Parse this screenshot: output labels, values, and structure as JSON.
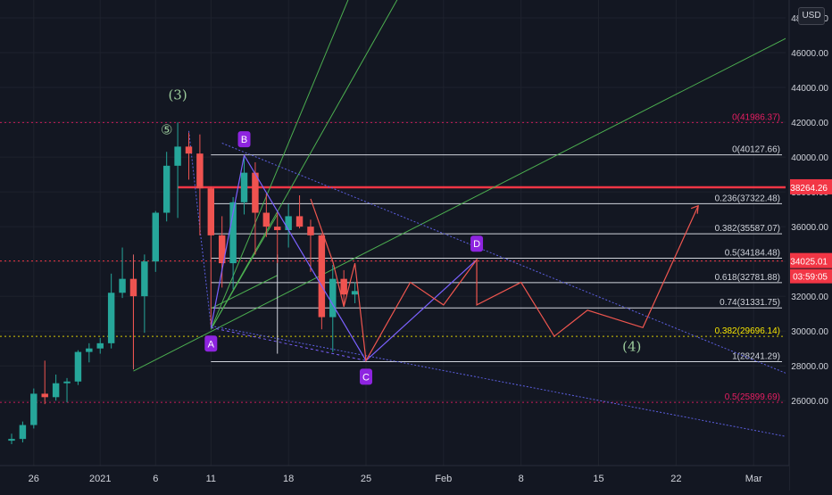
{
  "currency_button": "USD",
  "chart_data": {
    "type": "candlestick",
    "symbol_currency": "USD",
    "y_axis": {
      "range": [
        23500,
        48000
      ],
      "ticks": [
        {
          "value": 26000,
          "label": "26000.00"
        },
        {
          "value": 28000,
          "label": "28000.00"
        },
        {
          "value": 30000,
          "label": "30000.00"
        },
        {
          "value": 32000,
          "label": "32000.00"
        },
        {
          "value": 34000,
          "label": "34000.00"
        },
        {
          "value": 36000,
          "label": "36000.00"
        },
        {
          "value": 38000,
          "label": "38000.00"
        },
        {
          "value": 40000,
          "label": "40000.00"
        },
        {
          "value": 42000,
          "label": "42000.00"
        },
        {
          "value": 44000,
          "label": "44000.00"
        },
        {
          "value": 46000,
          "label": "46000.00"
        },
        {
          "value": 48000,
          "label": "48000.00"
        }
      ]
    },
    "x_axis": {
      "range": [
        "2020-12-24",
        "2021-03-03"
      ],
      "ticks": [
        {
          "date": "2020-12-26",
          "label": "26"
        },
        {
          "date": "2021-01-01",
          "label": "2021"
        },
        {
          "date": "2021-01-06",
          "label": "6"
        },
        {
          "date": "2021-01-11",
          "label": "11"
        },
        {
          "date": "2021-01-18",
          "label": "18"
        },
        {
          "date": "2021-01-25",
          "label": "25"
        },
        {
          "date": "2021-02-01",
          "label": "Feb"
        },
        {
          "date": "2021-02-08",
          "label": "8"
        },
        {
          "date": "2021-02-15",
          "label": "15"
        },
        {
          "date": "2021-02-22",
          "label": "22"
        },
        {
          "date": "2021-03-01",
          "label": "Mar"
        }
      ]
    },
    "candles": [
      {
        "date": "2020-12-24",
        "o": 23700,
        "h": 24100,
        "l": 23500,
        "c": 23800
      },
      {
        "date": "2020-12-25",
        "o": 23800,
        "h": 24800,
        "l": 23600,
        "c": 24600
      },
      {
        "date": "2020-12-26",
        "o": 24600,
        "h": 26700,
        "l": 24400,
        "c": 26400
      },
      {
        "date": "2020-12-27",
        "o": 26400,
        "h": 28300,
        "l": 25800,
        "c": 26200
      },
      {
        "date": "2020-12-28",
        "o": 26200,
        "h": 27500,
        "l": 26000,
        "c": 27000
      },
      {
        "date": "2020-12-29",
        "o": 27000,
        "h": 27300,
        "l": 25900,
        "c": 27100
      },
      {
        "date": "2020-12-30",
        "o": 27100,
        "h": 28900,
        "l": 26900,
        "c": 28800
      },
      {
        "date": "2020-12-31",
        "o": 28800,
        "h": 29300,
        "l": 28200,
        "c": 29000
      },
      {
        "date": "2021-01-01",
        "o": 29000,
        "h": 29600,
        "l": 28700,
        "c": 29300
      },
      {
        "date": "2021-01-02",
        "o": 29300,
        "h": 33300,
        "l": 29000,
        "c": 32200
      },
      {
        "date": "2021-01-03",
        "o": 32200,
        "h": 34800,
        "l": 31900,
        "c": 33000
      },
      {
        "date": "2021-01-04",
        "o": 33000,
        "h": 33600,
        "l": 28100,
        "c": 32000
      },
      {
        "date": "2021-01-05",
        "o": 32000,
        "h": 34400,
        "l": 29900,
        "c": 34000
      },
      {
        "date": "2021-01-06",
        "o": 34000,
        "h": 36900,
        "l": 33400,
        "c": 36800
      },
      {
        "date": "2021-01-07",
        "o": 36800,
        "h": 40300,
        "l": 36300,
        "c": 39500
      },
      {
        "date": "2021-01-08",
        "o": 39500,
        "h": 41986,
        "l": 36500,
        "c": 40600
      },
      {
        "date": "2021-01-09",
        "o": 40600,
        "h": 41400,
        "l": 38700,
        "c": 40200
      },
      {
        "date": "2021-01-10",
        "o": 40200,
        "h": 41300,
        "l": 35500,
        "c": 38200
      },
      {
        "date": "2021-01-11",
        "o": 38200,
        "h": 38300,
        "l": 30300,
        "c": 35500
      },
      {
        "date": "2021-01-12",
        "o": 35500,
        "h": 36600,
        "l": 32500,
        "c": 33900
      },
      {
        "date": "2021-01-13",
        "o": 33900,
        "h": 37700,
        "l": 32400,
        "c": 37400
      },
      {
        "date": "2021-01-14",
        "o": 37400,
        "h": 40100,
        "l": 36700,
        "c": 39100
      },
      {
        "date": "2021-01-15",
        "o": 39100,
        "h": 39700,
        "l": 34400,
        "c": 36800
      },
      {
        "date": "2021-01-16",
        "o": 36800,
        "h": 37900,
        "l": 35400,
        "c": 36000
      },
      {
        "date": "2021-01-17",
        "o": 36000,
        "h": 36800,
        "l": 33900,
        "c": 35800
      },
      {
        "date": "2021-01-18",
        "o": 35800,
        "h": 37300,
        "l": 34800,
        "c": 36600
      },
      {
        "date": "2021-01-19",
        "o": 36600,
        "h": 37800,
        "l": 35900,
        "c": 36000
      },
      {
        "date": "2021-01-20",
        "o": 36000,
        "h": 36400,
        "l": 33400,
        "c": 35500
      },
      {
        "date": "2021-01-21",
        "o": 35500,
        "h": 35600,
        "l": 30100,
        "c": 30800
      },
      {
        "date": "2021-01-22",
        "o": 30800,
        "h": 33800,
        "l": 28800,
        "c": 33000
      },
      {
        "date": "2021-01-23",
        "o": 33000,
        "h": 33500,
        "l": 31400,
        "c": 32100
      },
      {
        "date": "2021-01-24",
        "o": 32100,
        "h": 32800,
        "l": 31600,
        "c": 32300
      }
    ],
    "fib_levels": [
      {
        "ratio": "0",
        "value": 41986.37,
        "label": "0(41986.37)",
        "color": "#e91e63",
        "dash": true
      },
      {
        "ratio": "0",
        "value": 40127.66,
        "label": "0(40127.66)",
        "color": "#d1d4dc",
        "dash": false
      },
      {
        "ratio": "0.236",
        "value": 37322.48,
        "label": "0.236(37322.48)",
        "color": "#d1d4dc",
        "dash": false
      },
      {
        "ratio": "0.382",
        "value": 35587.07,
        "label": "0.382(35587.07)",
        "color": "#d1d4dc",
        "dash": false
      },
      {
        "ratio": "0.5",
        "value": 34184.48,
        "label": "0.5(34184.48)",
        "color": "#d1d4dc",
        "dash": false
      },
      {
        "ratio": "0.618",
        "value": 32781.88,
        "label": "0.618(32781.88)",
        "color": "#d1d4dc",
        "dash": false
      },
      {
        "ratio": "0.74",
        "value": 31331.75,
        "label": "0.74(31331.75)",
        "color": "#d1d4dc",
        "dash": false
      },
      {
        "ratio": "0.382",
        "value": 29696.14,
        "label": "0.382(29696.14)",
        "color": "#f7e600",
        "dash": true
      },
      {
        "ratio": "1",
        "value": 28241.29,
        "label": "1(28241.29)",
        "color": "#d1d4dc",
        "dash": false
      },
      {
        "ratio": "0.5",
        "value": 25899.69,
        "label": "0.5(25899.69)",
        "color": "#e91e63",
        "dash": true
      }
    ],
    "horizontal_lines": [
      {
        "value": 38264.26,
        "label": "38264.26",
        "color": "#f23645",
        "width": 2.5
      },
      {
        "value": 34025.01,
        "label": "34025.01",
        "color": "#f23645",
        "width": 1,
        "dash": true,
        "countdown": "03:59:05"
      }
    ],
    "wave_labels": [
      {
        "label": "(3)",
        "date": "2021-01-08",
        "price": 43300,
        "color": "#9ccc9c"
      },
      {
        "label": "⑤",
        "date": "2021-01-07",
        "price": 41300,
        "color": "#9ccc9c"
      },
      {
        "label": "(4)",
        "date": "2021-02-18",
        "price": 28850,
        "color": "#9ccc9c"
      }
    ],
    "point_labels": [
      {
        "label": "A",
        "date": "2021-01-11",
        "price": 30200,
        "pos": "below"
      },
      {
        "label": "B",
        "date": "2021-01-14",
        "price": 40100,
        "pos": "above"
      },
      {
        "label": "C",
        "date": "2021-01-25",
        "price": 28300,
        "pos": "below"
      },
      {
        "label": "D",
        "date": "2021-02-04",
        "price": 34100,
        "pos": "above"
      }
    ],
    "abcd_pattern": [
      {
        "date": "2021-01-11",
        "price": 30200
      },
      {
        "date": "2021-01-14",
        "price": 40100
      },
      {
        "date": "2021-01-25",
        "price": 28300
      },
      {
        "date": "2021-02-04",
        "price": 34100
      }
    ],
    "projection_path": [
      {
        "date": "2021-01-20",
        "price": 37600
      },
      {
        "date": "2021-01-22",
        "price": 34000
      },
      {
        "date": "2021-01-23",
        "price": 31400
      },
      {
        "date": "2021-01-24",
        "price": 33900
      },
      {
        "date": "2021-01-25",
        "price": 28300
      },
      {
        "date": "2021-01-29",
        "price": 32800
      },
      {
        "date": "2021-02-01",
        "price": 31500
      },
      {
        "date": "2021-02-04",
        "price": 34100
      },
      {
        "date": "2021-02-04",
        "price": 31500
      },
      {
        "date": "2021-02-08",
        "price": 32800
      },
      {
        "date": "2021-02-11",
        "price": 29700
      },
      {
        "date": "2021-02-14",
        "price": 31200
      },
      {
        "date": "2021-02-19",
        "price": 30200
      },
      {
        "date": "2021-02-24",
        "price": 37200
      }
    ]
  }
}
